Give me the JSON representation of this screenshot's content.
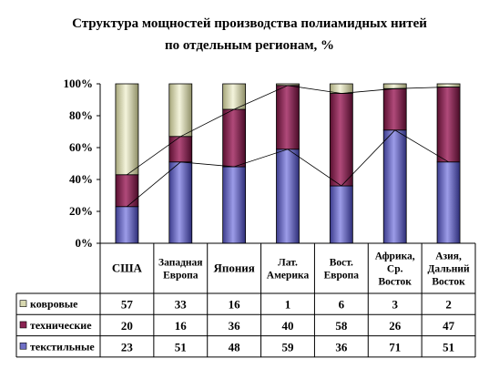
{
  "chart_data": {
    "type": "bar",
    "stacked": true,
    "percent": true,
    "title_lines": [
      "Структура мощностей производства полиамидных нитей",
      "по отдельным регионам, %"
    ],
    "categories": [
      [
        "США"
      ],
      [
        "Западная",
        "Европа"
      ],
      [
        "Япония"
      ],
      [
        "Лат.",
        "Америка"
      ],
      [
        "Вост.",
        "Европа"
      ],
      [
        "Африка,",
        "Ср.",
        "Восток"
      ],
      [
        "Азия,",
        "Дальний",
        "Восток"
      ]
    ],
    "series": [
      {
        "name": "текстильные",
        "values": [
          23,
          51,
          48,
          59,
          36,
          71,
          51
        ],
        "color": "#6f6fc6"
      },
      {
        "name": "технические",
        "values": [
          20,
          16,
          36,
          40,
          58,
          26,
          47
        ],
        "color": "#8b2252"
      },
      {
        "name": "ковровые",
        "values": [
          57,
          33,
          16,
          1,
          6,
          3,
          2
        ],
        "color": "#d8d8b0"
      }
    ],
    "table_row_order": [
      "ковровые",
      "технические",
      "текстильные"
    ],
    "y_ticks": [
      "0%",
      "20%",
      "40%",
      "60%",
      "80%",
      "100%"
    ],
    "ylim": [
      0,
      100
    ],
    "series_lines": true,
    "data_table": true,
    "grid": false
  }
}
